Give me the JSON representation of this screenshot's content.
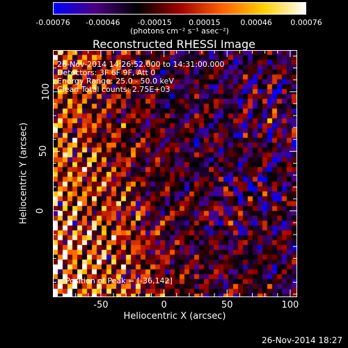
{
  "chart_data": {
    "type": "heatmap",
    "title": "Reconstructed RHESSI Image",
    "xlabel": "Heliocentric X (arcsec)",
    "ylabel": "Heliocentric Y (arcsec)",
    "xlim": [
      -88,
      105
    ],
    "ylim": [
      -72,
      135
    ],
    "xticks": [
      "-50",
      "0",
      "50",
      "100"
    ],
    "xtick_values": [
      -50,
      0,
      50,
      100
    ],
    "yticks": [
      "0",
      "50",
      "100"
    ],
    "ytick_values": [
      0,
      50,
      100
    ],
    "colorbar": {
      "ticks": [
        "-0.00076",
        "-0.00046",
        "-0.00015",
        "0.00015",
        "0.00046",
        "0.00076"
      ],
      "tick_values": [
        -0.00076,
        -0.00046,
        -0.00015,
        0.00015,
        0.00046,
        0.00076
      ],
      "units": "(photons cm⁻² s⁻¹ asec⁻²)",
      "range": [
        -0.00076,
        0.00076
      ],
      "colors": [
        "#0000ff",
        "#4b0082",
        "#000000",
        "#a00000",
        "#ff6000",
        "#ffd000",
        "#ffffff"
      ]
    },
    "annotations": {
      "time": "26-Nov-2014 14:26:52.000 to 14:31:00.000",
      "detectors": "Detectors: 3F 6F 9F, Att 0",
      "energy": "Energy Range: 25.0 - 50.0 keV",
      "clean": "Clean     Total counts: 2.75E+03",
      "peak": "Position of Peak = [-36,142]"
    },
    "timestamp": "26-Nov-2014 18:27"
  }
}
